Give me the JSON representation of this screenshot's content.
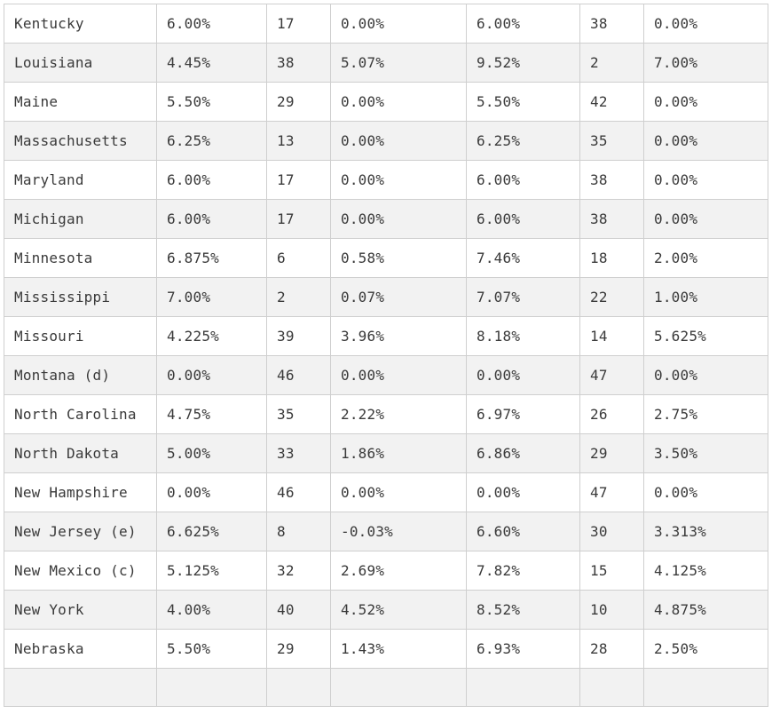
{
  "table": {
    "rows": [
      [
        "Kentucky",
        "6.00%",
        "17",
        "0.00%",
        "6.00%",
        "38",
        "0.00%"
      ],
      [
        "Louisiana",
        "4.45%",
        "38",
        "5.07%",
        "9.52%",
        "2",
        "7.00%"
      ],
      [
        "Maine",
        "5.50%",
        "29",
        "0.00%",
        "5.50%",
        "42",
        "0.00%"
      ],
      [
        "Massachusetts",
        "6.25%",
        "13",
        "0.00%",
        "6.25%",
        "35",
        "0.00%"
      ],
      [
        "Maryland",
        "6.00%",
        "17",
        "0.00%",
        "6.00%",
        "38",
        "0.00%"
      ],
      [
        "Michigan",
        "6.00%",
        "17",
        "0.00%",
        "6.00%",
        "38",
        "0.00%"
      ],
      [
        "Minnesota",
        "6.875%",
        "6",
        "0.58%",
        "7.46%",
        "18",
        "2.00%"
      ],
      [
        "Mississippi",
        "7.00%",
        "2",
        "0.07%",
        "7.07%",
        "22",
        "1.00%"
      ],
      [
        "Missouri",
        "4.225%",
        "39",
        "3.96%",
        "8.18%",
        "14",
        "5.625%"
      ],
      [
        "Montana (d)",
        "0.00%",
        "46",
        "0.00%",
        "0.00%",
        "47",
        "0.00%"
      ],
      [
        "North Carolina",
        "4.75%",
        "35",
        "2.22%",
        "6.97%",
        "26",
        "2.75%"
      ],
      [
        "North Dakota",
        "5.00%",
        "33",
        "1.86%",
        "6.86%",
        "29",
        "3.50%"
      ],
      [
        "New Hampshire",
        "0.00%",
        "46",
        "0.00%",
        "0.00%",
        "47",
        "0.00%"
      ],
      [
        "New Jersey (e)",
        "6.625%",
        "8",
        "-0.03%",
        "6.60%",
        "30",
        "3.313%"
      ],
      [
        "New Mexico (c)",
        "5.125%",
        "32",
        "2.69%",
        "7.82%",
        "15",
        "4.125%"
      ],
      [
        "New York",
        "4.00%",
        "40",
        "4.52%",
        "8.52%",
        "10",
        "4.875%"
      ],
      [
        "Nebraska",
        "5.50%",
        "29",
        "1.43%",
        "6.93%",
        "28",
        "2.50%"
      ],
      [
        "",
        "",
        "",
        "",
        "",
        "",
        ""
      ]
    ]
  }
}
